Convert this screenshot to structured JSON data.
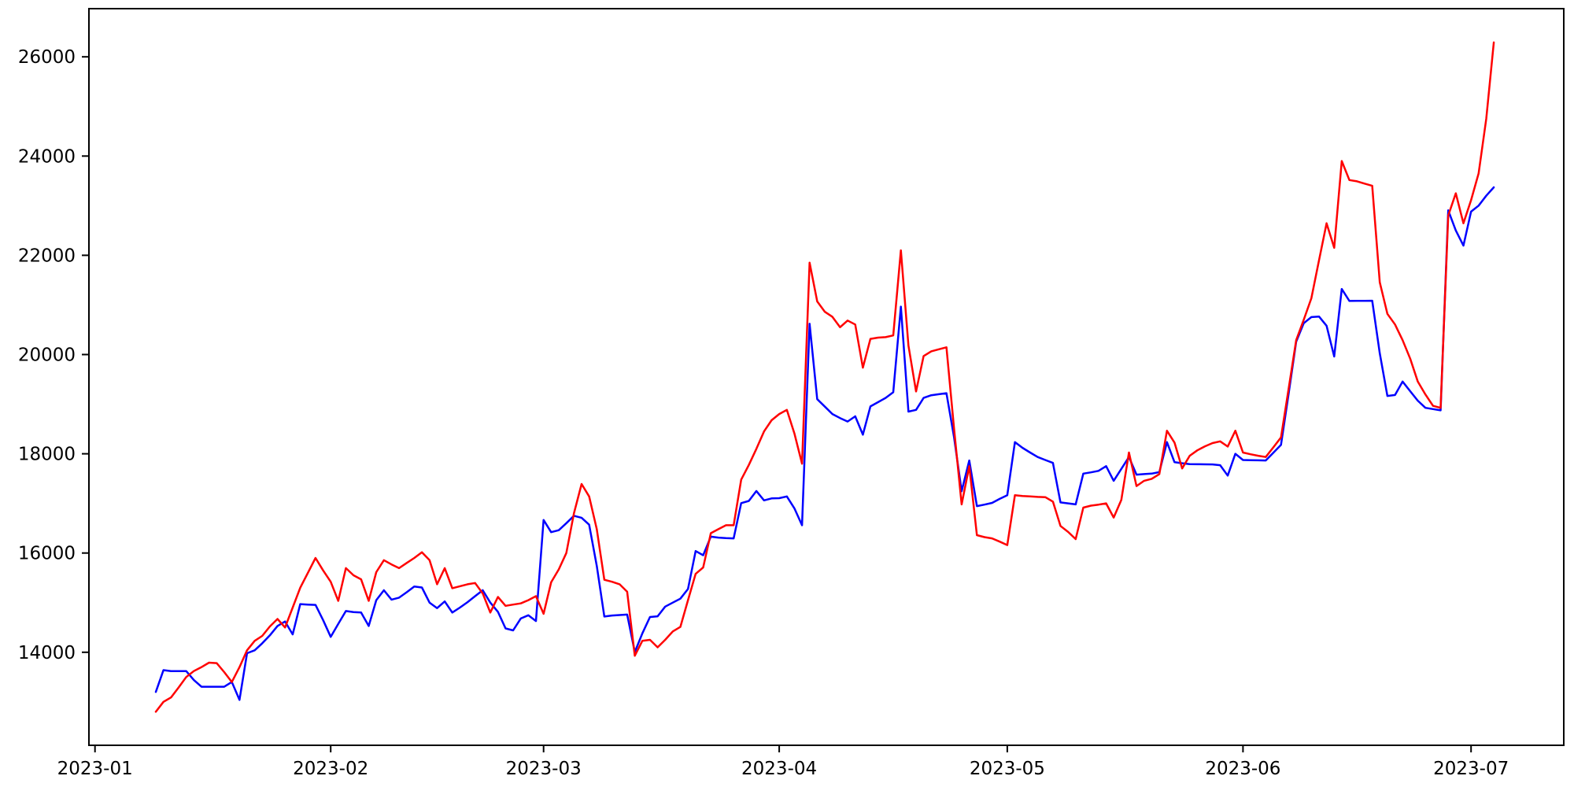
{
  "chart_data": {
    "type": "line",
    "title": "",
    "xlabel": "",
    "ylabel": "",
    "grid": false,
    "legend": null,
    "background_color": "#ffffff",
    "spine_color": "#000000",
    "x_tick_labels": [
      "2023-01",
      "2023-02",
      "2023-03",
      "2023-04",
      "2023-05",
      "2023-06",
      "2023-07"
    ],
    "x_tick_days": [
      0,
      31,
      59,
      90,
      120,
      151,
      181
    ],
    "y_ticks": [
      14000,
      16000,
      18000,
      20000,
      22000,
      24000,
      26000
    ],
    "xlim_days": [
      -0.8,
      193.2
    ],
    "ylim": [
      12125,
      26970
    ],
    "dates": [
      "2023-01-09",
      "2023-01-10",
      "2023-01-11",
      "2023-01-12",
      "2023-01-13",
      "2023-01-14",
      "2023-01-15",
      "2023-01-16",
      "2023-01-17",
      "2023-01-18",
      "2023-01-19",
      "2023-01-20",
      "2023-01-21",
      "2023-01-22",
      "2023-01-23",
      "2023-01-24",
      "2023-01-25",
      "2023-01-26",
      "2023-01-27",
      "2023-01-28",
      "2023-01-29",
      "2023-01-30",
      "2023-01-31",
      "2023-02-01",
      "2023-02-02",
      "2023-02-03",
      "2023-02-04",
      "2023-02-05",
      "2023-02-06",
      "2023-02-07",
      "2023-02-08",
      "2023-02-09",
      "2023-02-10",
      "2023-02-11",
      "2023-02-12",
      "2023-02-13",
      "2023-02-14",
      "2023-02-15",
      "2023-02-16",
      "2023-02-17",
      "2023-02-18",
      "2023-02-19",
      "2023-02-20",
      "2023-02-21",
      "2023-02-22",
      "2023-02-23",
      "2023-02-24",
      "2023-02-25",
      "2023-02-26",
      "2023-02-27",
      "2023-02-28",
      "2023-03-01",
      "2023-03-02",
      "2023-03-03",
      "2023-03-04",
      "2023-03-05",
      "2023-03-06",
      "2023-03-07",
      "2023-03-08",
      "2023-03-09",
      "2023-03-10",
      "2023-03-11",
      "2023-03-12",
      "2023-03-13",
      "2023-03-14",
      "2023-03-15",
      "2023-03-16",
      "2023-03-17",
      "2023-03-18",
      "2023-03-19",
      "2023-03-20",
      "2023-03-21",
      "2023-03-22",
      "2023-03-23",
      "2023-03-24",
      "2023-03-25",
      "2023-03-26",
      "2023-03-27",
      "2023-03-28",
      "2023-03-29",
      "2023-03-30",
      "2023-03-31",
      "2023-04-01",
      "2023-04-02",
      "2023-04-03",
      "2023-04-04",
      "2023-04-05",
      "2023-04-06",
      "2023-04-07",
      "2023-04-08",
      "2023-04-09",
      "2023-04-10",
      "2023-04-11",
      "2023-04-12",
      "2023-04-13",
      "2023-04-14",
      "2023-04-15",
      "2023-04-16",
      "2023-04-17",
      "2023-04-18",
      "2023-04-19",
      "2023-04-20",
      "2023-04-21",
      "2023-04-22",
      "2023-04-23",
      "2023-04-24",
      "2023-04-25",
      "2023-04-26",
      "2023-04-27",
      "2023-04-28",
      "2023-04-29",
      "2023-04-30",
      "2023-05-01",
      "2023-05-02",
      "2023-05-03",
      "2023-05-04",
      "2023-05-05",
      "2023-05-06",
      "2023-05-07",
      "2023-05-08",
      "2023-05-09",
      "2023-05-10",
      "2023-05-11",
      "2023-05-12",
      "2023-05-13",
      "2023-05-14",
      "2023-05-15",
      "2023-05-16",
      "2023-05-17",
      "2023-05-18",
      "2023-05-19",
      "2023-05-20",
      "2023-05-21",
      "2023-05-22",
      "2023-05-23",
      "2023-05-24",
      "2023-05-25",
      "2023-05-26",
      "2023-05-27",
      "2023-05-28",
      "2023-05-29",
      "2023-05-30",
      "2023-05-31",
      "2023-06-01",
      "2023-06-02",
      "2023-06-03",
      "2023-06-04",
      "2023-06-05",
      "2023-06-06",
      "2023-06-07",
      "2023-06-08",
      "2023-06-09",
      "2023-06-10",
      "2023-06-11",
      "2023-06-12",
      "2023-06-13",
      "2023-06-14",
      "2023-06-15",
      "2023-06-16",
      "2023-06-17",
      "2023-06-18",
      "2023-06-19",
      "2023-06-20",
      "2023-06-21",
      "2023-06-22",
      "2023-06-23",
      "2023-06-24",
      "2023-06-25",
      "2023-06-26",
      "2023-06-27",
      "2023-06-28",
      "2023-06-29",
      "2023-06-30",
      "2023-07-01",
      "2023-07-02",
      "2023-07-03",
      "2023-07-04"
    ],
    "series": [
      {
        "name": "blue-series",
        "color": "#0000ff",
        "values": [
          13200,
          13640,
          13620,
          13620,
          13620,
          13440,
          13305,
          13305,
          13305,
          13305,
          13400,
          13040,
          13980,
          14040,
          14180,
          14340,
          14530,
          14620,
          14360,
          14970,
          14960,
          14955,
          14650,
          14310,
          14570,
          14830,
          14810,
          14800,
          14530,
          15050,
          15250,
          15060,
          15100,
          15210,
          15325,
          15305,
          15000,
          14890,
          15025,
          14800,
          14900,
          15010,
          15130,
          15250,
          15000,
          14815,
          14480,
          14440,
          14680,
          14745,
          14630,
          16665,
          16420,
          16460,
          16600,
          16750,
          16710,
          16570,
          15740,
          14720,
          14740,
          14750,
          14760,
          14005,
          14380,
          14710,
          14725,
          14920,
          15000,
          15080,
          15275,
          16040,
          15955,
          16330,
          16310,
          16300,
          16295,
          17005,
          17050,
          17250,
          17060,
          17100,
          17105,
          17140,
          16900,
          16560,
          20620,
          19100,
          18950,
          18800,
          18720,
          18650,
          18755,
          18385,
          18955,
          19040,
          19125,
          19240,
          20965,
          18850,
          18885,
          19125,
          19180,
          19200,
          19220,
          18330,
          17245,
          17865,
          16945,
          16975,
          17010,
          17090,
          17165,
          18235,
          18120,
          18025,
          17935,
          17875,
          17815,
          17020,
          17000,
          16980,
          17600,
          17625,
          17655,
          17750,
          17455,
          17695,
          17935,
          17580,
          17590,
          17600,
          17630,
          18235,
          17830,
          17810,
          17790,
          17788,
          17787,
          17785,
          17770,
          17560,
          18000,
          17875,
          17870,
          17868,
          17865,
          18020,
          18180,
          19200,
          20260,
          20630,
          20755,
          20765,
          20580,
          19960,
          21320,
          21080,
          21082,
          21083,
          21085,
          20025,
          19165,
          19185,
          19455,
          19260,
          19070,
          18925,
          18900,
          18875,
          22905,
          22500,
          22195,
          22880,
          23000,
          23200,
          23370
        ]
      },
      {
        "name": "red-series",
        "color": "#ff0000",
        "values": [
          12800,
          13000,
          13090,
          13290,
          13500,
          13620,
          13700,
          13790,
          13780,
          13600,
          13400,
          13700,
          14040,
          14230,
          14330,
          14520,
          14670,
          14500,
          14900,
          15300,
          15600,
          15900,
          15650,
          15420,
          15035,
          15695,
          15550,
          15470,
          15035,
          15615,
          15855,
          15770,
          15695,
          15800,
          15900,
          16015,
          15855,
          15370,
          15695,
          15290,
          15330,
          15370,
          15395,
          15185,
          14800,
          15115,
          14935,
          14960,
          14985,
          15050,
          15130,
          14775,
          15410,
          15670,
          16000,
          16800,
          17390,
          17140,
          16480,
          15460,
          15420,
          15370,
          15220,
          13930,
          14230,
          14250,
          14100,
          14250,
          14420,
          14510,
          15050,
          15580,
          15710,
          16400,
          16480,
          16560,
          16560,
          17480,
          17775,
          18100,
          18450,
          18675,
          18800,
          18885,
          18410,
          17800,
          21850,
          21070,
          20860,
          20760,
          20550,
          20685,
          20605,
          19735,
          20315,
          20340,
          20350,
          20385,
          22100,
          20180,
          19255,
          19970,
          20065,
          20105,
          20145,
          18500,
          16980,
          17750,
          16360,
          16320,
          16295,
          16230,
          16160,
          17165,
          17150,
          17140,
          17130,
          17125,
          17035,
          16545,
          16425,
          16280,
          16915,
          16955,
          16975,
          17000,
          16715,
          17070,
          18025,
          17350,
          17455,
          17495,
          17590,
          18465,
          18225,
          17705,
          17960,
          18070,
          18150,
          18215,
          18250,
          18145,
          18465,
          18025,
          17990,
          17960,
          17935,
          18130,
          18330,
          19300,
          20290,
          20700,
          21135,
          21900,
          22645,
          22150,
          23900,
          23515,
          23490,
          23445,
          23400,
          21455,
          20820,
          20605,
          20290,
          19915,
          19455,
          19195,
          18965,
          18925,
          22800,
          23250,
          22645,
          23110,
          23650,
          24750,
          26290
        ]
      }
    ]
  }
}
